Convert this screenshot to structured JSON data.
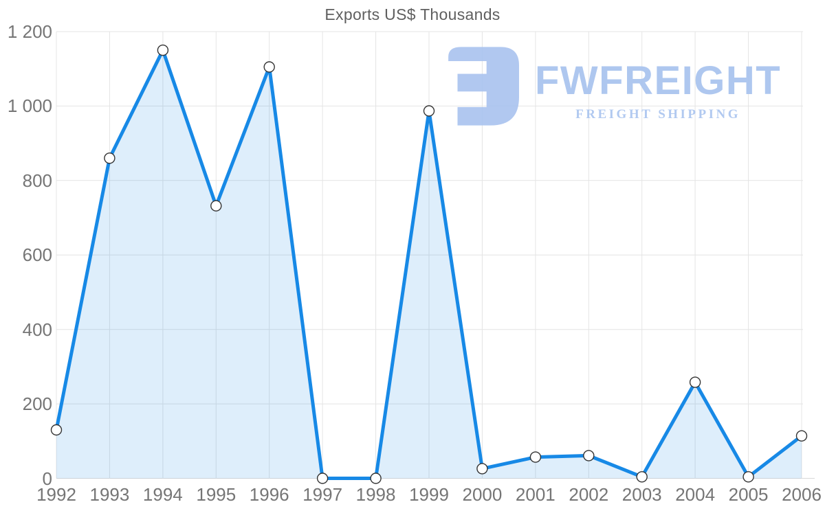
{
  "title": "Exports US$ Thousands",
  "watermark": {
    "brand": "FWFREIGHT",
    "tagline": "FREIGHT SHIPPING",
    "color": "#a9c3ef"
  },
  "chart_data": {
    "type": "area",
    "title": "Exports US$ Thousands",
    "xlabel": "",
    "ylabel": "",
    "x": [
      1992,
      1993,
      1994,
      1995,
      1996,
      1997,
      1998,
      1999,
      2000,
      2001,
      2002,
      2003,
      2004,
      2005,
      2006
    ],
    "series": [
      {
        "name": "Exports US$ Thousands",
        "values": [
          130,
          860,
          1150,
          732,
          1105,
          0,
          0,
          987,
          26,
          57,
          61,
          4,
          258,
          4,
          114
        ]
      }
    ],
    "ylim": [
      0,
      1200
    ],
    "y_ticks": [
      0,
      200,
      400,
      600,
      800,
      1000,
      1200
    ],
    "y_tick_labels": [
      "0",
      "200",
      "400",
      "600",
      "800",
      "1 000",
      "1 200"
    ],
    "grid": "both",
    "legend": false,
    "marker": "circle",
    "colors": {
      "line": "#1789e6",
      "fill": "rgba(23,137,230,0.14)",
      "marker_fill": "#ffffff",
      "marker_stroke": "#333333",
      "grid": "#e4e4e4",
      "baseline": "#d8d8d8",
      "axis_text": "#757575",
      "title_text": "#5f5f5f"
    }
  }
}
